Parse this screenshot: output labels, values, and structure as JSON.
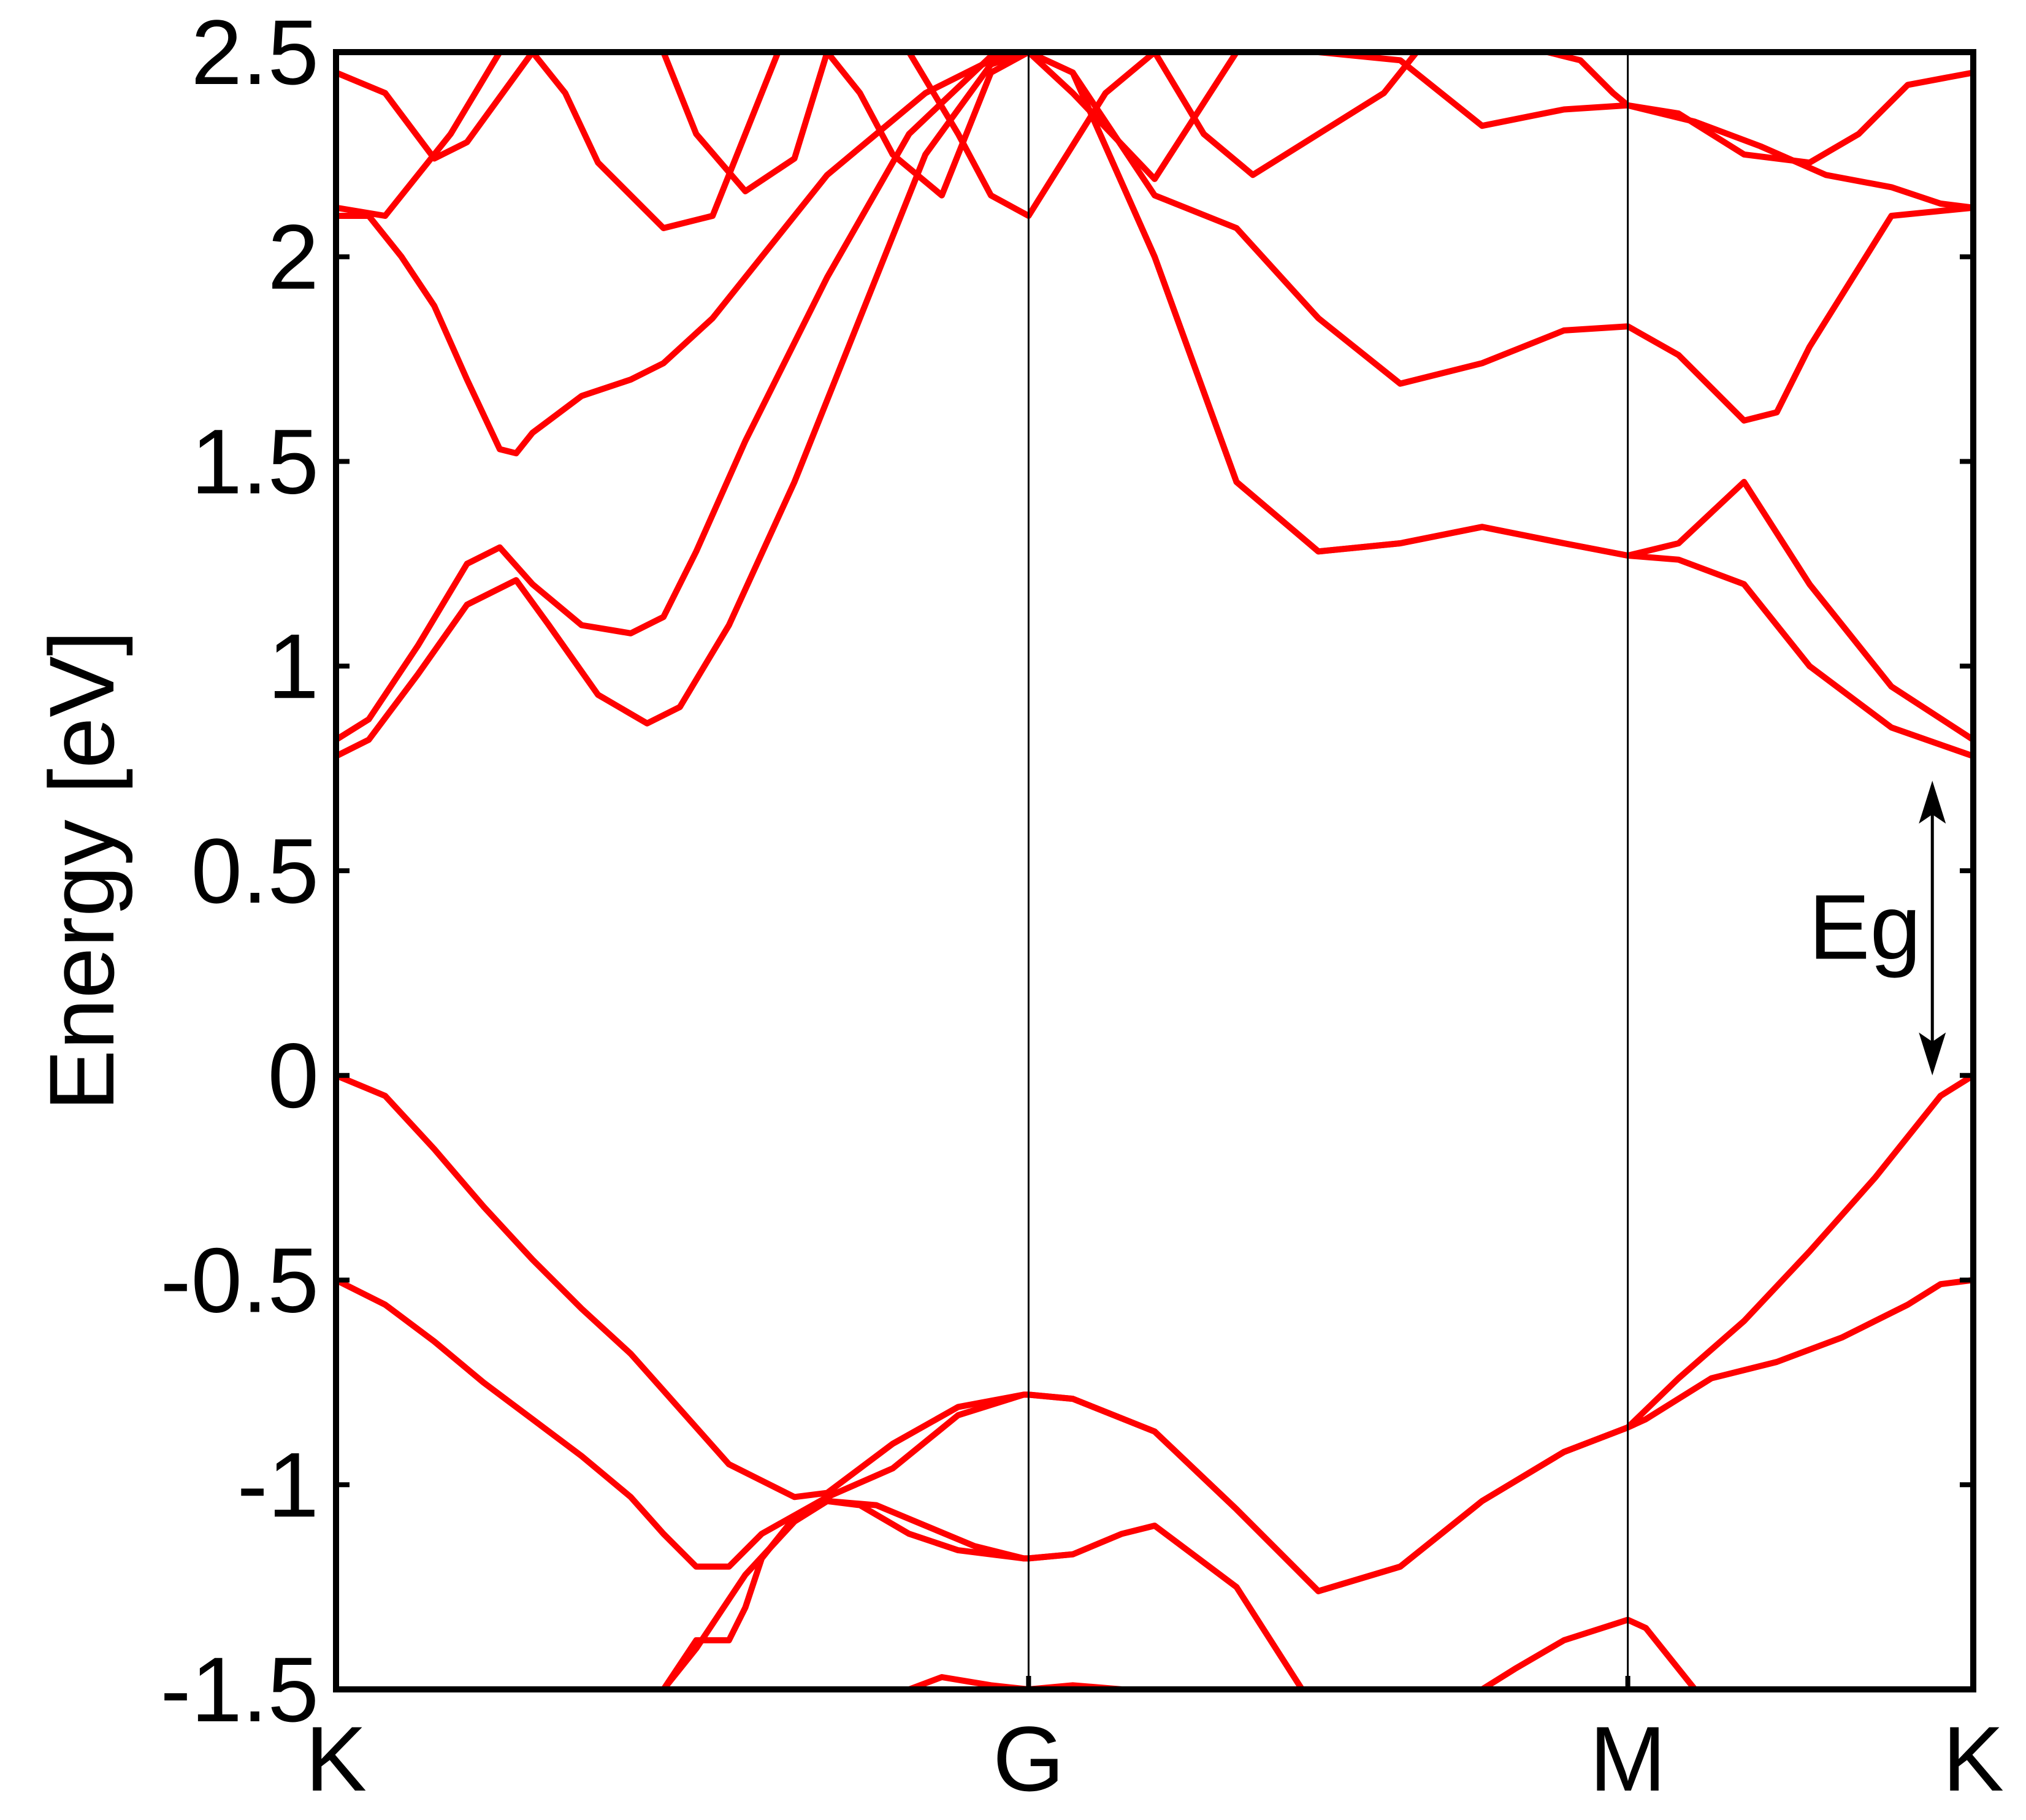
{
  "chart_data": {
    "type": "line",
    "title": "",
    "xlabel": "",
    "ylabel": "Energy [eV]",
    "ylim": [
      -1.5,
      2.5
    ],
    "xlim": [
      0,
      1
    ],
    "y_ticks": [
      "2.5",
      "2",
      "1.5",
      "1",
      "0.5",
      "0",
      "-0.5",
      "-1",
      "-1.5"
    ],
    "x_ticks": [
      {
        "label": "K",
        "x": 0.0
      },
      {
        "label": "G",
        "x": 0.423
      },
      {
        "label": "M",
        "x": 0.789
      },
      {
        "label": "K",
        "x": 1.0
      }
    ],
    "grid": false,
    "line_color": "#ff0000",
    "annotation": {
      "text": "Eg",
      "y_from": 0.0,
      "y_to": 0.72,
      "x": 0.975
    },
    "series": [
      {
        "x": [
          0.0,
          0.03,
          0.06,
          0.09,
          0.12,
          0.15,
          0.18,
          0.2,
          0.24,
          0.28,
          0.3,
          0.34,
          0.38,
          0.42,
          0.423,
          0.45,
          0.5,
          0.55,
          0.6,
          0.65,
          0.7,
          0.75,
          0.789,
          0.82,
          0.86,
          0.9,
          0.94,
          0.98,
          1.0
        ],
        "y": [
          0.0,
          -0.05,
          -0.18,
          -0.32,
          -0.45,
          -0.57,
          -0.68,
          -0.77,
          -0.95,
          -1.03,
          -1.02,
          -0.9,
          -0.81,
          -0.78,
          -0.78,
          -0.79,
          -0.87,
          -1.06,
          -1.26,
          -1.2,
          -1.04,
          -0.92,
          -0.86,
          -0.74,
          -0.6,
          -0.43,
          -0.25,
          -0.05,
          0.0
        ]
      },
      {
        "x": [
          0.0,
          0.03,
          0.06,
          0.09,
          0.12,
          0.15,
          0.18,
          0.2,
          0.22,
          0.24,
          0.26,
          0.3,
          0.34,
          0.38,
          0.42,
          0.423,
          0.45,
          0.5,
          0.55,
          0.6,
          0.65,
          0.7,
          0.75,
          0.789,
          0.8,
          0.84,
          0.88,
          0.92,
          0.96,
          0.98,
          1.0
        ],
        "y": [
          -0.5,
          -0.56,
          -0.65,
          -0.75,
          -0.84,
          -0.93,
          -1.03,
          -1.12,
          -1.2,
          -1.2,
          -1.12,
          -1.03,
          -0.96,
          -0.83,
          -0.78,
          -0.78,
          -0.79,
          -0.87,
          -1.06,
          -1.26,
          -1.2,
          -1.04,
          -0.92,
          -0.86,
          -0.84,
          -0.74,
          -0.7,
          -0.64,
          -0.56,
          -0.51,
          -0.5
        ]
      },
      {
        "x": [
          0.0,
          0.02,
          0.05,
          0.08,
          0.1,
          0.12,
          0.15,
          0.18,
          0.2,
          0.22,
          0.25,
          0.3,
          0.35,
          0.4,
          0.423,
          0.45,
          0.5,
          0.55,
          0.6,
          0.65,
          0.7,
          0.75,
          0.789,
          0.82,
          0.86,
          0.9,
          0.95,
          1.0
        ],
        "y": [
          0.82,
          0.87,
          1.05,
          1.25,
          1.29,
          1.2,
          1.1,
          1.08,
          1.12,
          1.28,
          1.55,
          1.95,
          2.3,
          2.49,
          2.5,
          2.45,
          2.0,
          1.45,
          1.28,
          1.3,
          1.34,
          1.3,
          1.27,
          1.3,
          1.45,
          1.2,
          0.95,
          0.82
        ]
      },
      {
        "x": [
          0.0,
          0.02,
          0.05,
          0.08,
          0.11,
          0.13,
          0.16,
          0.19,
          0.21,
          0.24,
          0.28,
          0.32,
          0.36,
          0.4,
          0.423,
          0.45,
          0.5,
          0.55,
          0.6,
          0.65,
          0.7,
          0.75,
          0.789,
          0.82,
          0.86,
          0.9,
          0.95,
          1.0
        ],
        "y": [
          0.78,
          0.82,
          0.98,
          1.15,
          1.21,
          1.1,
          0.93,
          0.86,
          0.9,
          1.1,
          1.45,
          1.85,
          2.25,
          2.47,
          2.5,
          2.45,
          2.0,
          1.45,
          1.28,
          1.3,
          1.34,
          1.3,
          1.27,
          1.26,
          1.2,
          1.0,
          0.85,
          0.78
        ]
      },
      {
        "x": [
          0.0,
          0.02,
          0.04,
          0.06,
          0.08,
          0.1,
          0.11,
          0.12,
          0.15,
          0.18,
          0.2,
          0.23,
          0.26,
          0.29,
          0.3,
          0.33,
          0.36,
          0.4,
          0.423,
          0.45,
          0.5,
          0.55,
          0.6,
          0.65,
          0.7,
          0.75,
          0.789,
          0.82,
          0.86,
          0.88,
          0.9,
          0.95,
          1.0
        ],
        "y": [
          2.1,
          2.1,
          2.0,
          1.88,
          1.7,
          1.53,
          1.52,
          1.57,
          1.66,
          1.7,
          1.74,
          1.85,
          2.0,
          2.15,
          2.2,
          2.3,
          2.4,
          2.48,
          2.5,
          2.45,
          2.15,
          2.07,
          1.85,
          1.69,
          1.74,
          1.82,
          1.83,
          1.76,
          1.6,
          1.62,
          1.78,
          2.1,
          2.12
        ]
      },
      {
        "x": [
          0.0,
          0.03,
          0.05,
          0.07,
          0.1,
          0.12,
          0.14,
          0.16,
          0.2,
          0.23,
          0.25,
          0.27,
          0.3,
          0.32,
          0.34,
          0.37,
          0.4,
          0.423,
          0.45,
          0.5,
          0.55,
          0.6,
          0.65,
          0.7,
          0.75,
          0.789,
          0.83,
          0.87,
          0.91,
          0.95,
          0.98,
          1.0
        ],
        "y": [
          2.12,
          2.1,
          2.2,
          2.3,
          2.5,
          2.5,
          2.4,
          2.23,
          2.07,
          2.1,
          2.3,
          2.5,
          2.5,
          2.4,
          2.25,
          2.15,
          2.45,
          2.5,
          2.4,
          2.19,
          2.5,
          2.5,
          2.48,
          2.32,
          2.36,
          2.37,
          2.33,
          2.27,
          2.2,
          2.17,
          2.13,
          2.12
        ]
      },
      {
        "x": [
          0.0,
          0.03,
          0.06,
          0.08,
          0.12,
          0.16,
          0.2,
          0.22,
          0.25,
          0.28,
          0.3,
          0.32,
          0.35,
          0.38,
          0.4,
          0.423,
          0.47,
          0.5,
          0.53,
          0.56,
          0.6,
          0.64,
          0.66,
          0.68,
          0.7,
          0.72,
          0.74,
          0.76,
          0.78,
          0.789,
          0.82,
          0.86,
          0.9,
          0.93,
          0.96,
          1.0
        ],
        "y": [
          2.45,
          2.4,
          2.24,
          2.28,
          2.5,
          2.5,
          2.5,
          2.3,
          2.16,
          2.24,
          2.5,
          2.5,
          2.5,
          2.3,
          2.15,
          2.1,
          2.4,
          2.5,
          2.3,
          2.2,
          2.3,
          2.4,
          2.5,
          2.5,
          2.5,
          2.5,
          2.5,
          2.48,
          2.4,
          2.37,
          2.35,
          2.25,
          2.23,
          2.3,
          2.42,
          2.45
        ]
      },
      {
        "x": [
          0.2,
          0.22,
          0.24,
          0.25,
          0.26,
          0.28,
          0.3,
          0.33,
          0.36,
          0.39,
          0.42,
          0.423,
          0.45,
          0.48,
          0.5,
          0.55,
          0.59
        ],
        "y": [
          -1.5,
          -1.38,
          -1.38,
          -1.3,
          -1.18,
          -1.08,
          -1.04,
          -1.05,
          -1.1,
          -1.15,
          -1.18,
          -1.18,
          -1.17,
          -1.12,
          -1.1,
          -1.25,
          -1.5
        ]
      },
      {
        "x": [
          0.2,
          0.22,
          0.25,
          0.28,
          0.3,
          0.32,
          0.35,
          0.38,
          0.42,
          0.423,
          0.45
        ],
        "y": [
          -1.5,
          -1.4,
          -1.22,
          -1.09,
          -1.04,
          -1.05,
          -1.12,
          -1.16,
          -1.18,
          -1.18,
          -1.17
        ]
      },
      {
        "x": [
          0.35,
          0.37,
          0.4,
          0.423,
          0.45,
          0.48
        ],
        "y": [
          -1.5,
          -1.47,
          -1.49,
          -1.5,
          -1.49,
          -1.5
        ]
      },
      {
        "x": [
          0.7,
          0.72,
          0.75,
          0.789,
          0.8,
          0.82,
          0.83
        ],
        "y": [
          -1.5,
          -1.45,
          -1.38,
          -1.33,
          -1.35,
          -1.45,
          -1.5
        ]
      }
    ]
  }
}
